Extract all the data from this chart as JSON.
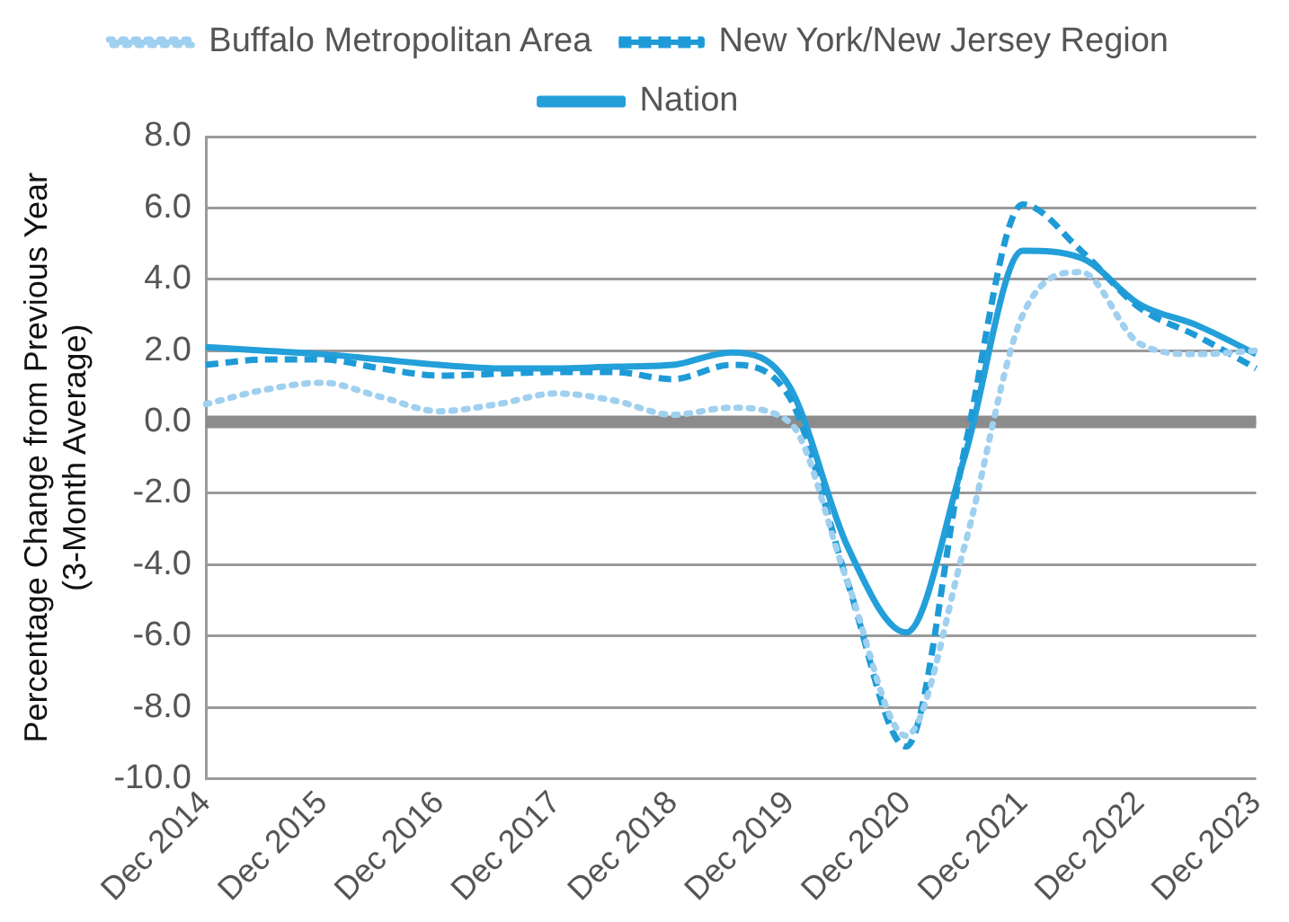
{
  "chart_data": {
    "type": "line",
    "ylabel": "Percentage Change from Previous Year\n(3-Month Average)",
    "categories": [
      "Dec 2014",
      null,
      "Dec 2015",
      null,
      "Dec 2016",
      null,
      "Dec 2017",
      null,
      "Dec 2018",
      null,
      "Dec 2019",
      null,
      "Dec 2020",
      null,
      "Dec 2021",
      null,
      "Dec 2022",
      null,
      "Dec 2023"
    ],
    "series": [
      {
        "name": "Buffalo Metropolitan Area",
        "color": "#9fd0ef",
        "line_style": "dotted",
        "values": [
          0.5,
          0.9,
          1.1,
          0.7,
          0.3,
          0.5,
          0.8,
          0.6,
          0.2,
          0.4,
          0.0,
          -4.5,
          -8.8,
          -3.5,
          3.0,
          4.2,
          2.2,
          1.9,
          2.0
        ]
      },
      {
        "name": "New York/New Jersey Region",
        "color": "#1e9bd7",
        "line_style": "dashed",
        "values": [
          1.6,
          1.75,
          1.75,
          1.5,
          1.3,
          1.35,
          1.4,
          1.4,
          1.2,
          1.6,
          0.7,
          -4.5,
          -9.1,
          -0.8,
          6.1,
          4.8,
          3.2,
          2.4,
          1.5
        ]
      },
      {
        "name": "Nation",
        "color": "#239fd9",
        "line_style": "solid",
        "values": [
          2.1,
          2.0,
          1.9,
          1.75,
          1.6,
          1.5,
          1.5,
          1.55,
          1.6,
          1.95,
          1.0,
          -3.5,
          -5.9,
          -1.0,
          4.8,
          4.6,
          3.3,
          2.7,
          1.9
        ]
      }
    ],
    "ylim": [
      -10,
      8
    ],
    "yticks": [
      {
        "value": -10,
        "label": "-10.0"
      },
      {
        "value": -8,
        "label": "-8.0"
      },
      {
        "value": -6,
        "label": "-6.0"
      },
      {
        "value": -4,
        "label": "-4.0"
      },
      {
        "value": -2,
        "label": "-2.0"
      },
      {
        "value": 0,
        "label": "0.0"
      },
      {
        "value": 2,
        "label": "2.0"
      },
      {
        "value": 4,
        "label": "4.0"
      },
      {
        "value": 6,
        "label": "6.0"
      },
      {
        "value": 8,
        "label": "8.0"
      }
    ],
    "ref_lines": [
      {
        "axis": "y",
        "value": 0,
        "color": "#8c8c8c"
      }
    ],
    "grid": "y",
    "legend": "top",
    "marker": "none"
  }
}
